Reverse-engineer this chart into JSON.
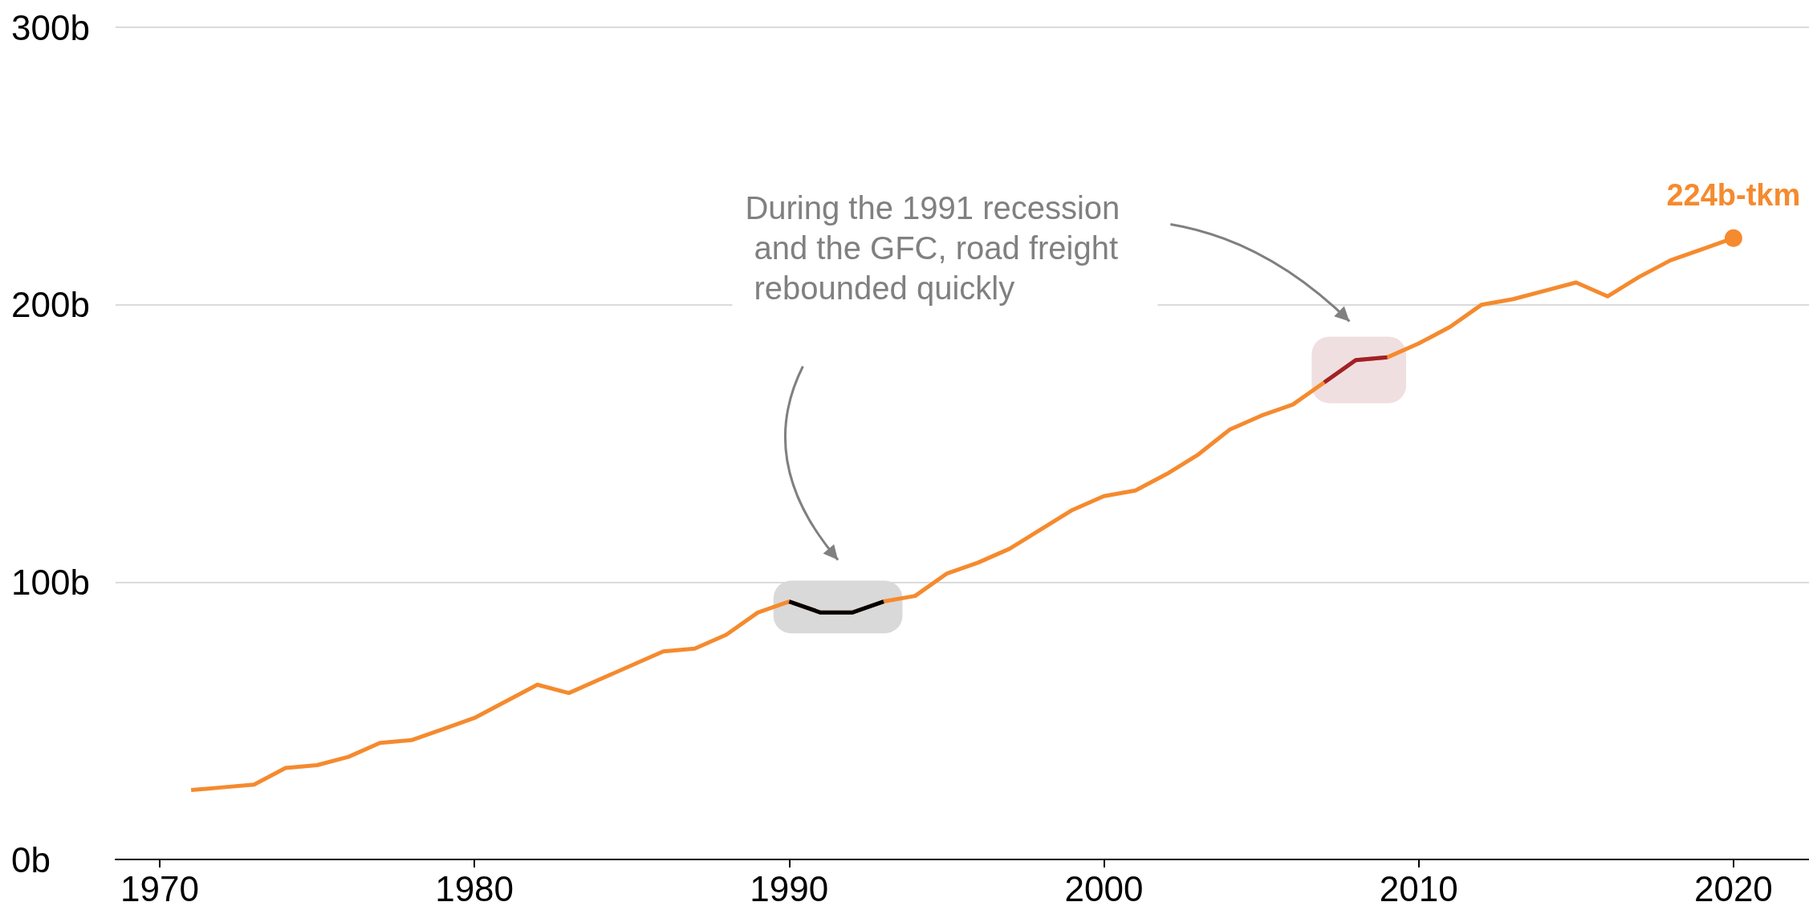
{
  "chart_data": {
    "type": "line",
    "x": [
      1971,
      1972,
      1973,
      1974,
      1975,
      1976,
      1977,
      1978,
      1979,
      1980,
      1981,
      1982,
      1983,
      1984,
      1985,
      1986,
      1987,
      1988,
      1989,
      1990,
      1991,
      1992,
      1993,
      1994,
      1995,
      1996,
      1997,
      1998,
      1999,
      2000,
      2001,
      2002,
      2003,
      2004,
      2005,
      2006,
      2007,
      2008,
      2009,
      2010,
      2011,
      2012,
      2013,
      2014,
      2015,
      2016,
      2017,
      2018,
      2019,
      2020
    ],
    "series": [
      {
        "color": "#f58a2e",
        "values": [
          25,
          26,
          27,
          33,
          34,
          37,
          42,
          43,
          47,
          51,
          57,
          63,
          60,
          65,
          70,
          75,
          76,
          81,
          89,
          93,
          89,
          89,
          93,
          95,
          103,
          107,
          112,
          119,
          126,
          131,
          133,
          139,
          146,
          155,
          160,
          164,
          172,
          180,
          181,
          186,
          192,
          200,
          202,
          205,
          208,
          203,
          210,
          216,
          220,
          224
        ],
        "value_labels": [
          null,
          null,
          null,
          null,
          null,
          null,
          null,
          null,
          null,
          null,
          null,
          null,
          null,
          null,
          null,
          null,
          null,
          null,
          null,
          null,
          null,
          null,
          null,
          null,
          null,
          null,
          null,
          null,
          null,
          null,
          null,
          null,
          null,
          null,
          null,
          null,
          null,
          null,
          null,
          null,
          null,
          null,
          null,
          null,
          null,
          null,
          null,
          null,
          null,
          "224b-tkm"
        ]
      },
      {
        "color": "#000000",
        "x": [
          1990,
          1991,
          1992,
          1993
        ],
        "values": [
          93,
          89,
          89,
          93
        ]
      },
      {
        "color": "#a0202a",
        "x": [
          2007,
          2008,
          2009
        ],
        "values": [
          172,
          180,
          181
        ]
      }
    ],
    "bands": [
      {
        "axis": "x",
        "from": 1989.5,
        "to": 1993.6,
        "color": "#d9d9d9"
      },
      {
        "axis": "x",
        "from": 2006.6,
        "to": 2009.6,
        "color": "#f0dfe0"
      }
    ],
    "annotations": [
      "During the 1991 recession and the GFC, road freight rebounded quickly"
    ],
    "xlim": [
      1968.6,
      2022.4
    ],
    "xticks": [
      1970,
      1980,
      1990,
      2000,
      2010,
      2020
    ],
    "ylim": [
      0,
      300
    ],
    "yticks": [
      {
        "value": 0,
        "label": "0b"
      },
      {
        "value": 100,
        "label": "100b"
      },
      {
        "value": 200,
        "label": "200b"
      },
      {
        "value": 300,
        "label": "300b"
      }
    ],
    "grid": "y",
    "marker": "none",
    "line_style": "solid"
  }
}
